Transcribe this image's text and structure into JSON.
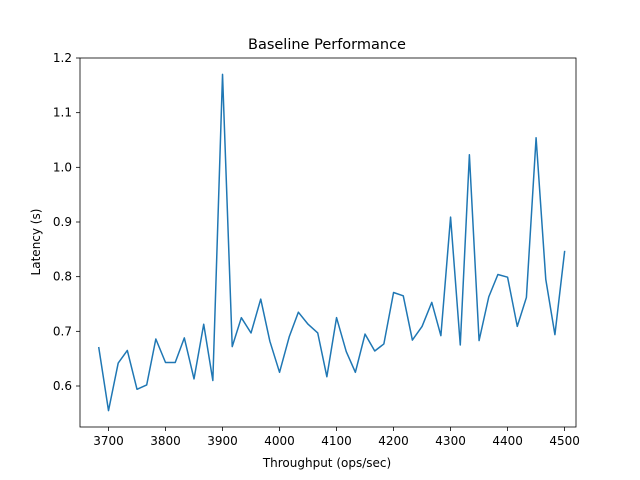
{
  "chart_data": {
    "type": "line",
    "title": "Baseline Performance",
    "xlabel": "Throughput (ops/sec)",
    "ylabel": "Latency (s)",
    "xlim": [
      3650,
      4520
    ],
    "ylim": [
      0.525,
      1.2
    ],
    "xticks": [
      3700,
      3800,
      3900,
      4000,
      4100,
      4200,
      4300,
      4400,
      4500
    ],
    "yticks": [
      0.6,
      0.7,
      0.8,
      0.9,
      1.0,
      1.1,
      1.2
    ],
    "xtick_labels": [
      "3700",
      "3800",
      "3900",
      "4000",
      "4100",
      "4200",
      "4300",
      "4400",
      "4500"
    ],
    "ytick_labels": [
      "0.6",
      "0.7",
      "0.8",
      "0.9",
      "1.0",
      "1.1",
      "1.2"
    ],
    "grid": false,
    "color": "#1f77b4",
    "series": [
      {
        "x": [
          3683,
          3700,
          3717,
          3733,
          3750,
          3767,
          3783,
          3800,
          3817,
          3833,
          3850,
          3867,
          3883,
          3900,
          3917,
          3933,
          3950,
          3967,
          3983,
          4000,
          4017,
          4033,
          4050,
          4067,
          4083,
          4100,
          4117,
          4133,
          4150,
          4167,
          4183,
          4200,
          4217,
          4233,
          4250,
          4267,
          4283,
          4300,
          4317,
          4333,
          4350,
          4367,
          4383,
          4400,
          4417,
          4433,
          4450,
          4467,
          4483,
          4500
        ],
        "y": [
          0.67,
          0.555,
          0.642,
          0.665,
          0.594,
          0.602,
          0.686,
          0.643,
          0.643,
          0.688,
          0.613,
          0.713,
          0.61,
          1.17,
          0.672,
          0.725,
          0.697,
          0.759,
          0.682,
          0.625,
          0.69,
          0.735,
          0.713,
          0.697,
          0.617,
          0.725,
          0.663,
          0.625,
          0.695,
          0.664,
          0.677,
          0.771,
          0.765,
          0.684,
          0.709,
          0.753,
          0.692,
          0.909,
          0.675,
          1.023,
          0.683,
          0.763,
          0.804,
          0.799,
          0.709,
          0.762,
          1.054,
          0.795,
          0.694,
          0.846
        ]
      }
    ]
  }
}
